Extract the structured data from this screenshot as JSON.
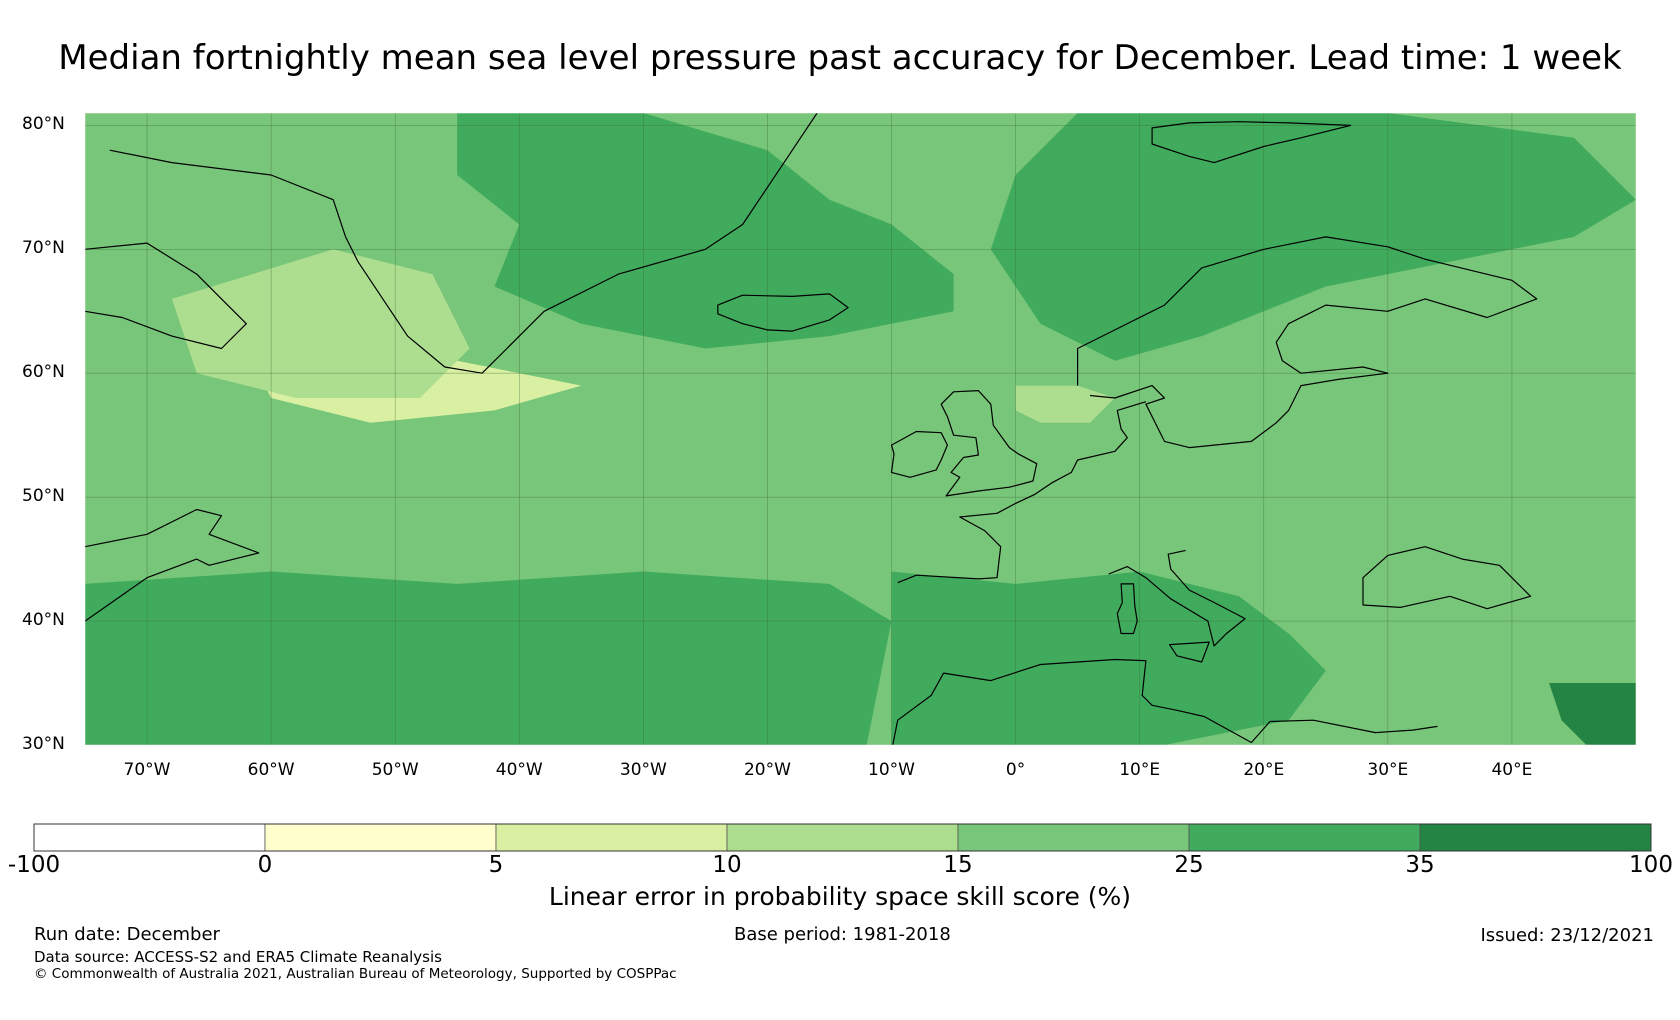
{
  "title": "Median fortnightly mean sea level pressure past accuracy for December. Lead time: 1 week",
  "map": {
    "lon_range": [
      -75,
      50
    ],
    "lat_range": [
      30,
      81
    ],
    "lat_ticks": [
      {
        "value": 80,
        "label": "80°N"
      },
      {
        "value": 70,
        "label": "70°N"
      },
      {
        "value": 60,
        "label": "60°N"
      },
      {
        "value": 50,
        "label": "50°N"
      },
      {
        "value": 40,
        "label": "40°N"
      },
      {
        "value": 30,
        "label": "30°N"
      }
    ],
    "lon_ticks": [
      {
        "value": -70,
        "label": "70°W"
      },
      {
        "value": -60,
        "label": "60°W"
      },
      {
        "value": -50,
        "label": "50°W"
      },
      {
        "value": -40,
        "label": "40°W"
      },
      {
        "value": -30,
        "label": "30°W"
      },
      {
        "value": -20,
        "label": "20°W"
      },
      {
        "value": -10,
        "label": "10°W"
      },
      {
        "value": 0,
        "label": "0°"
      },
      {
        "value": 10,
        "label": "10°E"
      },
      {
        "value": 20,
        "label": "20°E"
      },
      {
        "value": 30,
        "label": "30°E"
      },
      {
        "value": 40,
        "label": "40°E"
      }
    ],
    "background_class_color": "#78c679",
    "regions": [
      {
        "name": "north-atlantic-mid-band",
        "class": "15-25",
        "color": "#78c679"
      },
      {
        "name": "greenland-sea-iceland-band",
        "class": "25-35",
        "color": "#41ab5d"
      },
      {
        "name": "barents-norwegian-sea",
        "class": "25-35",
        "color": "#41ab5d"
      },
      {
        "name": "subtropical-atlantic-south",
        "class": "25-35",
        "color": "#41ab5d"
      },
      {
        "name": "mediterranean-iberia-north-africa",
        "class": "25-35",
        "color": "#41ab5d"
      },
      {
        "name": "labrador-sea",
        "class": "5-10",
        "color": "#d9f0a3"
      },
      {
        "name": "southern-greenland-labrador",
        "class": "10-15",
        "color": "#addd8e"
      },
      {
        "name": "north-sea-skagerrak",
        "class": "10-15",
        "color": "#addd8e"
      },
      {
        "name": "caspian-southwest-corner",
        "class": "35-100",
        "color": "#238443"
      }
    ],
    "coastlines": [
      {
        "name": "greenland"
      },
      {
        "name": "iceland"
      },
      {
        "name": "great-britain"
      },
      {
        "name": "ireland"
      },
      {
        "name": "scandinavia-baltic"
      },
      {
        "name": "europe-mainland"
      },
      {
        "name": "africa-north"
      },
      {
        "name": "italy"
      },
      {
        "name": "north-america-labrador"
      },
      {
        "name": "baffin-island"
      },
      {
        "name": "svalbard"
      },
      {
        "name": "black-sea"
      },
      {
        "name": "sardinia-corsica"
      },
      {
        "name": "sicily"
      }
    ]
  },
  "colorbar": {
    "bins": [
      {
        "from": "-100",
        "to": "0",
        "color": "#ffffff"
      },
      {
        "from": "0",
        "to": "5",
        "color": "#ffffcc"
      },
      {
        "from": "5",
        "to": "10",
        "color": "#d9f0a3"
      },
      {
        "from": "10",
        "to": "15",
        "color": "#addd8e"
      },
      {
        "from": "15",
        "to": "25",
        "color": "#78c679"
      },
      {
        "from": "25",
        "to": "35",
        "color": "#41ab5d"
      },
      {
        "from": "35",
        "to": "100",
        "color": "#238443"
      }
    ],
    "tick_labels": [
      "-100",
      "0",
      "5",
      "10",
      "15",
      "25",
      "35",
      "100"
    ],
    "label": "Linear error in probability space skill score (%)"
  },
  "footer": {
    "run_date": "Run date: December",
    "base_period": "Base period: 1981-2018",
    "issued": "Issued: 23/12/2021",
    "data_source": "Data source: ACCESS-S2 and ERA5 Climate Reanalysis",
    "copyright": "© Commonwealth of Australia 2021, Australian Bureau of Meteorology, Supported by COSPPac"
  }
}
